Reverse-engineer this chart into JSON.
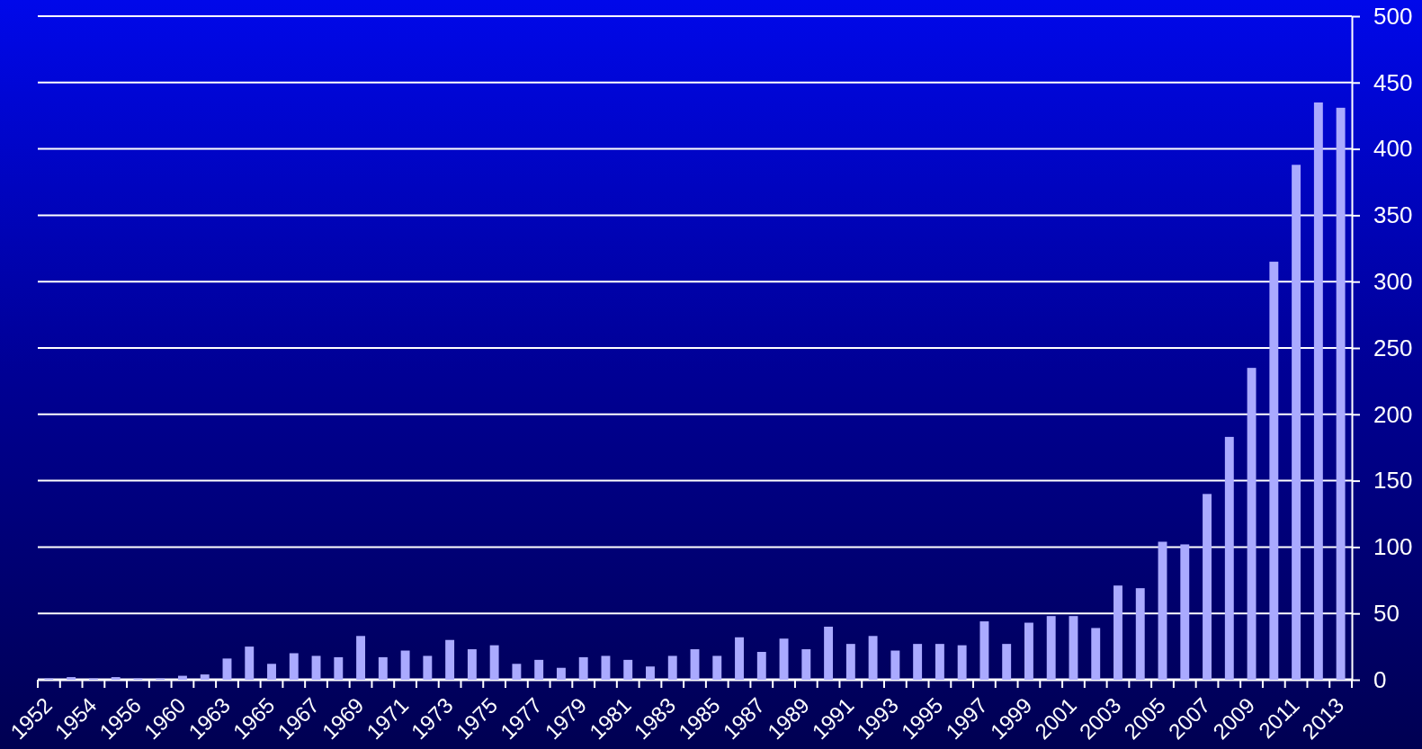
{
  "chart_data": {
    "type": "bar",
    "categories": [
      "1952",
      null,
      "1954",
      null,
      "1956",
      null,
      "1960",
      null,
      "1963",
      null,
      "1965",
      null,
      "1967",
      null,
      "1969",
      null,
      "1971",
      null,
      "1973",
      null,
      "1975",
      null,
      "1977",
      null,
      "1979",
      null,
      "1981",
      null,
      "1983",
      null,
      "1985",
      null,
      "1987",
      null,
      "1989",
      null,
      "1991",
      null,
      "1993",
      null,
      "1995",
      null,
      "1997",
      null,
      "1999",
      null,
      "2001",
      null,
      "2003",
      null,
      "2005",
      null,
      "2007",
      null,
      "2009",
      null,
      "2011",
      null,
      "2013"
    ],
    "values": [
      1,
      2,
      1,
      2,
      1,
      1,
      3,
      4,
      16,
      25,
      12,
      20,
      18,
      17,
      33,
      17,
      22,
      18,
      30,
      23,
      26,
      12,
      15,
      9,
      17,
      18,
      15,
      10,
      18,
      23,
      18,
      32,
      21,
      31,
      23,
      40,
      27,
      33,
      22,
      27,
      27,
      26,
      44,
      27,
      43,
      48,
      48,
      39,
      71,
      69,
      104,
      102,
      140,
      183,
      235,
      315,
      388,
      435,
      431
    ],
    "color": "#aaaaff",
    "ylim": [
      0,
      500
    ],
    "yticks": [
      0,
      50,
      100,
      150,
      200,
      250,
      300,
      350,
      400,
      450,
      500
    ],
    "grid": "y"
  }
}
